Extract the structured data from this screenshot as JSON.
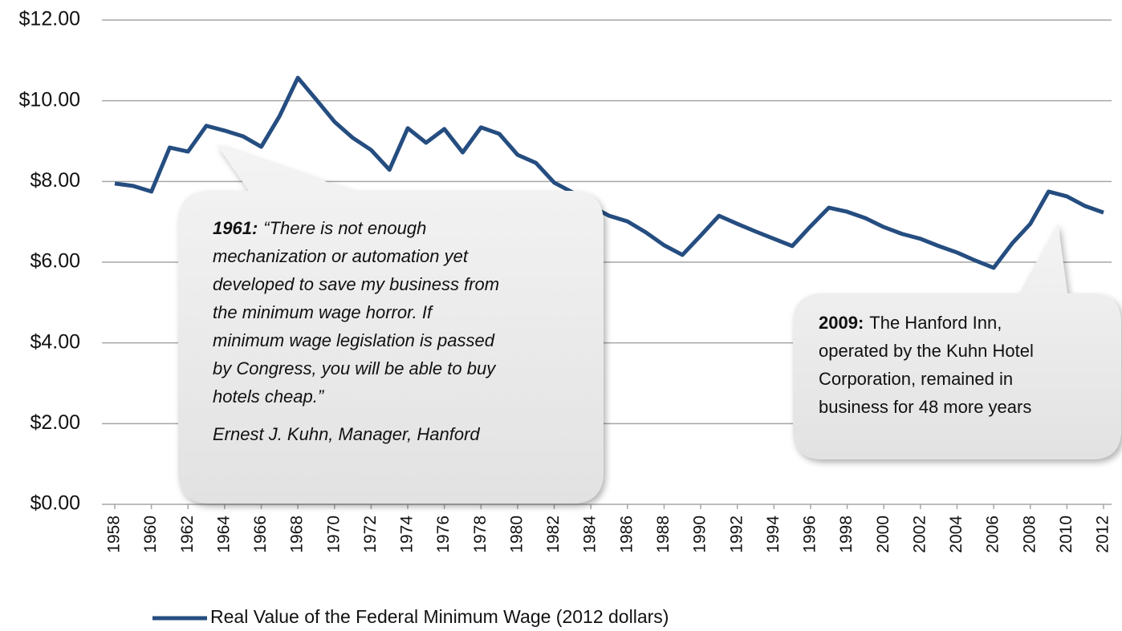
{
  "chart_data": {
    "type": "line",
    "x": [
      1958,
      1959,
      1960,
      1961,
      1962,
      1963,
      1964,
      1965,
      1966,
      1967,
      1968,
      1969,
      1970,
      1971,
      1972,
      1973,
      1974,
      1975,
      1976,
      1977,
      1978,
      1979,
      1980,
      1981,
      1982,
      1983,
      1984,
      1985,
      1986,
      1987,
      1988,
      1989,
      1990,
      1991,
      1992,
      1993,
      1994,
      1995,
      1996,
      1997,
      1998,
      1999,
      2000,
      2001,
      2002,
      2003,
      2004,
      2005,
      2006,
      2007,
      2008,
      2009,
      2010,
      2011,
      2012
    ],
    "series": [
      {
        "name": "Real Value of the Federal Minimum Wage (2012 dollars)",
        "color": "#254d80",
        "values": [
          7.95,
          7.89,
          7.75,
          8.84,
          8.74,
          9.38,
          9.26,
          9.12,
          8.86,
          9.62,
          10.57,
          10.03,
          9.48,
          9.08,
          8.78,
          8.29,
          9.32,
          8.96,
          9.3,
          8.72,
          9.34,
          9.18,
          8.66,
          8.46,
          7.97,
          7.73,
          7.39,
          7.15,
          7.01,
          6.74,
          6.42,
          6.18,
          6.66,
          7.15,
          6.95,
          6.76,
          6.58,
          6.4,
          6.89,
          7.35,
          7.25,
          7.09,
          6.87,
          6.7,
          6.58,
          6.4,
          6.24,
          6.04,
          5.86,
          6.46,
          6.95,
          7.75,
          7.63,
          7.39,
          7.23
        ]
      }
    ],
    "xlim": [
      1958,
      2012
    ],
    "xticks": [
      1958,
      1960,
      1962,
      1964,
      1966,
      1968,
      1970,
      1972,
      1974,
      1976,
      1978,
      1980,
      1982,
      1984,
      1986,
      1988,
      1990,
      1992,
      1994,
      1996,
      1998,
      2000,
      2002,
      2004,
      2006,
      2008,
      2010,
      2012
    ],
    "ylim": [
      0,
      12
    ],
    "yticks": [
      {
        "value": 0,
        "label": "$0.00"
      },
      {
        "value": 2,
        "label": "$2.00"
      },
      {
        "value": 4,
        "label": "$4.00"
      },
      {
        "value": 6,
        "label": "$6.00"
      },
      {
        "value": 8,
        "label": "$8.00"
      },
      {
        "value": 10,
        "label": "$10.00"
      },
      {
        "value": 12,
        "label": "$12.00"
      }
    ],
    "grid": true,
    "legend": "bottom",
    "annotations": [
      {
        "label": "1961:",
        "lines": [
          "“There is not enough",
          "mechanization or automation yet",
          "developed to save my business from",
          "the minimum wage horror. If",
          "minimum wage legislation is passed",
          "by Congress, you will be able to buy",
          "hotels cheap.”"
        ],
        "attribution": "Ernest J. Kuhn, Manager, Hanford"
      },
      {
        "label": "2009:",
        "lines": [
          "The Hanford Inn,",
          "operated by the Kuhn Hotel",
          "Corporation, remained in",
          "business for 48  more years"
        ]
      }
    ]
  }
}
